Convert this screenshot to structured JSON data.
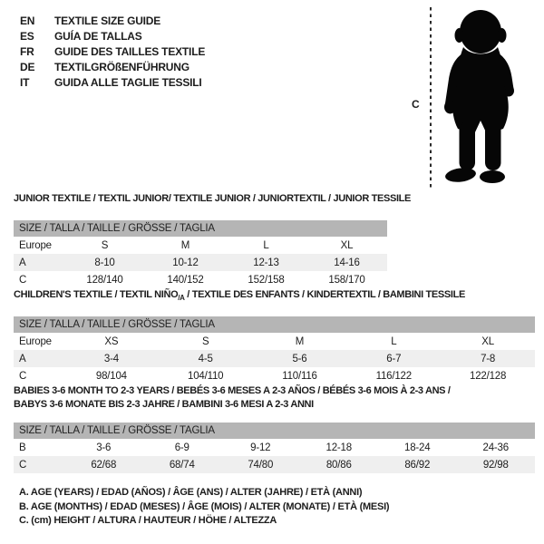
{
  "colors": {
    "header_band": "#b5b5b5",
    "alt_row": "#efefef",
    "text": "#1c1c1c",
    "silhouette": "#060606"
  },
  "languages": [
    {
      "code": "EN",
      "label": "TEXTILE SIZE GUIDE"
    },
    {
      "code": "ES",
      "label": "GUÍA DE TALLAS"
    },
    {
      "code": "FR",
      "label": "GUIDE DES TAILLES TEXTILE"
    },
    {
      "code": "DE",
      "label": "TEXTILGRÖßENFÜHRUNG"
    },
    {
      "code": "IT",
      "label": "GUIDA ALLE TAGLIE TESSILI"
    }
  ],
  "figure": {
    "icon": "baby-silhouette",
    "measure_label": "C"
  },
  "tables": [
    {
      "name": "junior-textile",
      "title_lines": [
        [
          {
            "text": "JUNIOR TEXTILE / TEXTIL JUNIOR/ TEXTILE JUNIOR / JUNIORTEXTIL / JUNIOR TESSILE"
          }
        ]
      ],
      "size_header": "SIZE / TALLA / TAILLE / GRÖSSE / TAGLIA",
      "rows": [
        {
          "label": "Europe",
          "values": [
            "S",
            "M",
            "L",
            "XL"
          ]
        },
        {
          "label": "A",
          "values": [
            "8-10",
            "10-12",
            "12-13",
            "14-16"
          ]
        },
        {
          "label": "C",
          "values": [
            "128/140",
            "140/152",
            "152/158",
            "158/170"
          ]
        }
      ]
    },
    {
      "name": "childrens-textile",
      "title_lines": [
        [
          {
            "text": "CHILDREN'S TEXTILE / TEXTIL NIÑO"
          },
          {
            "text": "/A",
            "sub": true
          },
          {
            "text": " / TEXTILE DES ENFANTS / KINDERTEXTIL / BAMBINI TESSILE"
          }
        ]
      ],
      "size_header": "SIZE / TALLA / TAILLE / GRÖSSE / TAGLIA",
      "rows": [
        {
          "label": "Europe",
          "values": [
            "XS",
            "S",
            "M",
            "L",
            "XL"
          ]
        },
        {
          "label": "A",
          "values": [
            "3-4",
            "4-5",
            "5-6",
            "6-7",
            "7-8"
          ]
        },
        {
          "label": "C",
          "values": [
            "98/104",
            "104/110",
            "110/116",
            "116/122",
            "122/128"
          ]
        }
      ]
    },
    {
      "name": "babies-textile",
      "title_lines": [
        [
          {
            "text": "BABIES 3-6 MONTH TO 2-3 YEARS / BEBÉS 3-6 MESES A 2-3 AÑOS / BÉBÉS 3-6 MOIS À 2-3 ANS /"
          }
        ],
        [
          {
            "text": "BABYS 3-6 MONATE BIS 2-3 JAHRE / BAMBINI 3-6 MESI A 2-3 ANNI"
          }
        ]
      ],
      "size_header": "SIZE / TALLA / TAILLE / GRÖSSE / TAGLIA",
      "rows": [
        {
          "label": "B",
          "values": [
            "3-6",
            "6-9",
            "9-12",
            "12-18",
            "18-24",
            "24-36"
          ]
        },
        {
          "label": "C",
          "values": [
            "62/68",
            "68/74",
            "74/80",
            "80/86",
            "86/92",
            "92/98"
          ]
        }
      ]
    }
  ],
  "footnotes": [
    "A. AGE (YEARS) / EDAD (AÑOS) / ÂGE (ANS) / ALTER (JAHRE) / ETÀ (ANNI)",
    "B. AGE (MONTHS) / EDAD (MESES) / ÂGE (MOIS) / ALTER (MONATE) / ETÀ (MESI)",
    "C. (cm) HEIGHT / ALTURA / HAUTEUR / HÖHE / ALTEZZA"
  ]
}
